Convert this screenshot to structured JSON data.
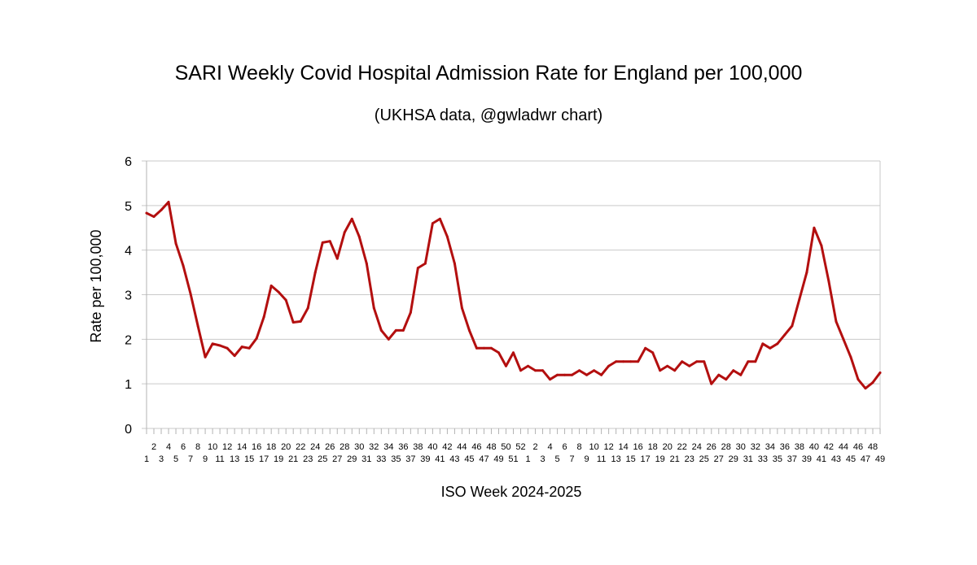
{
  "chart_data": {
    "type": "line",
    "title": "SARI Weekly Covid Hospital Admission Rate for England per 100,000",
    "subtitle": "(UKHSA data, @gwladwr chart)",
    "xlabel": "ISO Week 2024-2025",
    "ylabel": "Rate per 100,000",
    "ylim": [
      0,
      6
    ],
    "yticks": [
      0,
      1,
      2,
      3,
      4,
      5,
      6
    ],
    "grid": true,
    "line_color": "#b30f0f",
    "x": [
      "1",
      "2",
      "3",
      "4",
      "5",
      "6",
      "7",
      "8",
      "9",
      "10",
      "11",
      "12",
      "13",
      "14",
      "15",
      "16",
      "17",
      "18",
      "19",
      "20",
      "21",
      "22",
      "23",
      "24",
      "25",
      "26",
      "27",
      "28",
      "29",
      "30",
      "31",
      "32",
      "33",
      "34",
      "35",
      "36",
      "37",
      "38",
      "39",
      "40",
      "41",
      "42",
      "43",
      "44",
      "45",
      "46",
      "47",
      "48",
      "49",
      "50",
      "51",
      "52",
      "1",
      "2",
      "3",
      "4",
      "5",
      "6",
      "7",
      "8",
      "9",
      "10",
      "11",
      "12",
      "13",
      "14",
      "15",
      "16",
      "17",
      "18",
      "19",
      "20",
      "21",
      "22",
      "23",
      "24",
      "25",
      "26",
      "27",
      "28",
      "29",
      "30",
      "31",
      "32",
      "33",
      "34",
      "35",
      "36",
      "37",
      "38",
      "39",
      "40",
      "41",
      "42",
      "43",
      "44",
      "45",
      "46",
      "47",
      "48",
      "49"
    ],
    "series": [
      {
        "name": "Rate per 100,000",
        "values": [
          4.83,
          4.75,
          4.9,
          5.08,
          4.15,
          3.65,
          3.02,
          2.3,
          1.6,
          1.9,
          1.86,
          1.8,
          1.63,
          1.83,
          1.8,
          2.02,
          2.5,
          3.2,
          3.06,
          2.88,
          2.38,
          2.4,
          2.7,
          3.5,
          4.17,
          4.2,
          3.81,
          4.4,
          4.7,
          4.3,
          3.7,
          2.7,
          2.2,
          2.0,
          2.2,
          2.2,
          2.6,
          3.6,
          3.7,
          4.6,
          4.7,
          4.3,
          3.7,
          2.7,
          2.2,
          1.8,
          1.8,
          1.8,
          1.7,
          1.4,
          1.7,
          1.3,
          1.4,
          1.3,
          1.3,
          1.1,
          1.2,
          1.2,
          1.2,
          1.3,
          1.2,
          1.3,
          1.2,
          1.4,
          1.5,
          1.5,
          1.5,
          1.5,
          1.8,
          1.7,
          1.3,
          1.4,
          1.3,
          1.5,
          1.4,
          1.5,
          1.5,
          1.0,
          1.2,
          1.1,
          1.3,
          1.2,
          1.5,
          1.5,
          1.9,
          1.8,
          1.9,
          2.1,
          2.3,
          2.9,
          3.5,
          4.5,
          4.1,
          3.3,
          2.4,
          2.0,
          1.6,
          1.1,
          0.9,
          1.03,
          1.25
        ]
      }
    ]
  }
}
